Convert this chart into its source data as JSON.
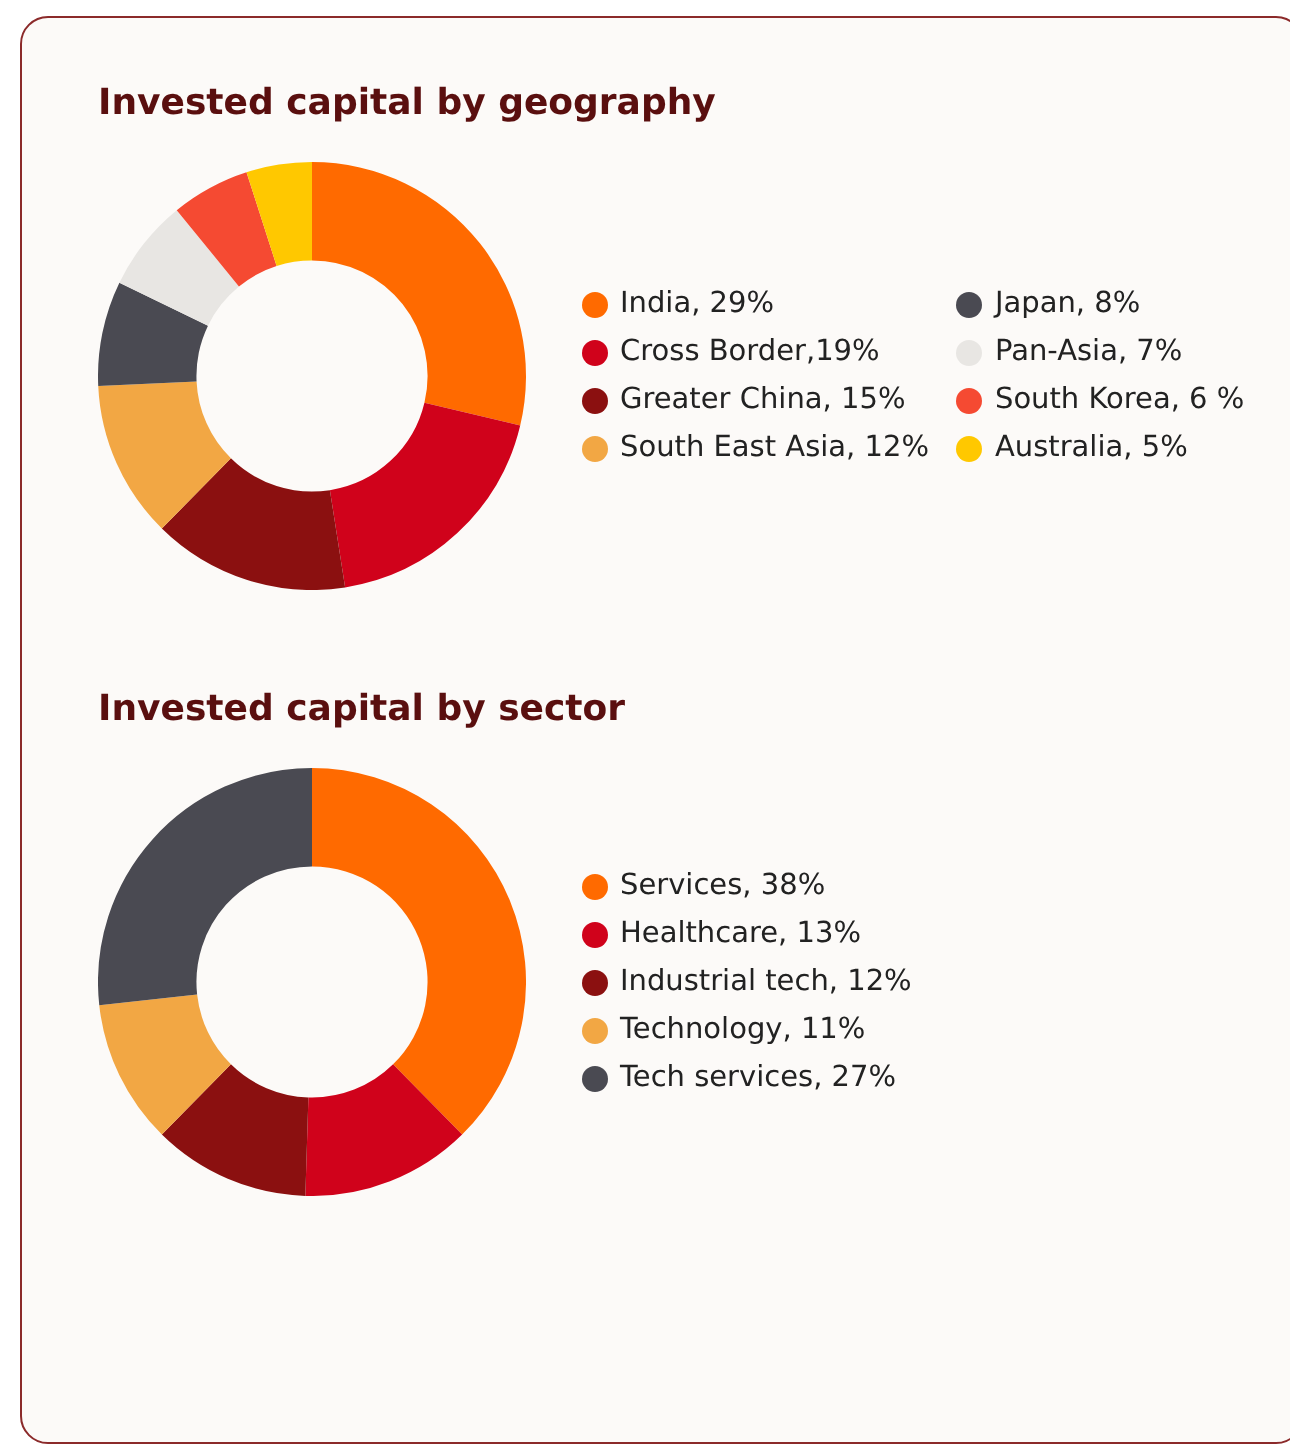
{
  "chart_data": [
    {
      "type": "donut",
      "title": "Invested capital by geography",
      "legend": "right",
      "categories": [
        "India, 29%",
        "Cross Border,19%",
        "Greater China, 15%",
        "South East Asia, 12%",
        "Japan, 8%",
        "Pan-Asia, 7%",
        "South Korea, 6 %",
        "Australia, 5%"
      ],
      "values": [
        29,
        19,
        15,
        12,
        8,
        7,
        6,
        5
      ],
      "colors": [
        "#ff6a00",
        "#d0021b",
        "#8b1010",
        "#f2a744",
        "#4a4a52",
        "#e8e6e3",
        "#f54a32",
        "#ffc800"
      ]
    },
    {
      "type": "donut",
      "title": "Invested capital by sector",
      "legend": "right",
      "categories": [
        "Services, 38%",
        "Healthcare, 13%",
        "Industrial tech, 12%",
        "Technology, 11%",
        "Tech services, 27%"
      ],
      "values": [
        38,
        13,
        12,
        11,
        27
      ],
      "colors": [
        "#ff6a00",
        "#d0021b",
        "#8b1010",
        "#f2a744",
        "#4a4a52"
      ]
    }
  ]
}
